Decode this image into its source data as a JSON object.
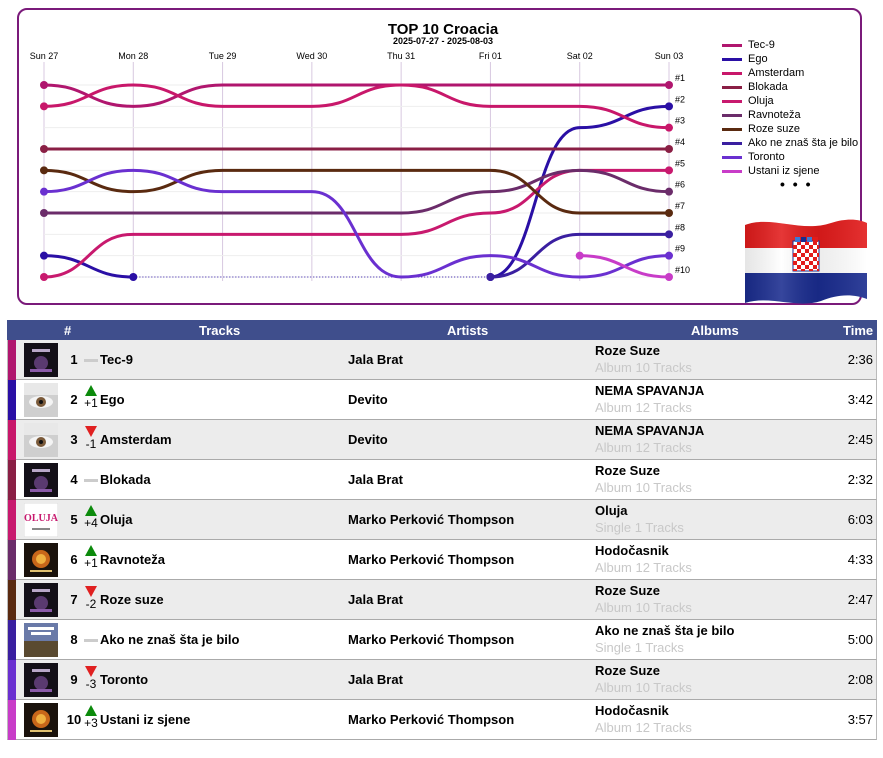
{
  "chart": {
    "title": "TOP 10 Croacia",
    "subtitle": "2025-07-27 - 2025-08-03",
    "days": [
      "Sun 27",
      "Mon 28",
      "Tue 29",
      "Wed 30",
      "Thu 31",
      "Fri 01",
      "Sat 02",
      "Sun 03"
    ],
    "rank_labels": [
      "#1",
      "#2",
      "#3",
      "#4",
      "#5",
      "#6",
      "#7",
      "#8",
      "#9",
      "#10"
    ],
    "more": "• • •"
  },
  "chart_data": {
    "type": "line",
    "title": "TOP 10 Croacia",
    "subtitle": "2025-07-27 - 2025-08-03",
    "x": [
      "Sun 27",
      "Mon 28",
      "Tue 29",
      "Wed 30",
      "Thu 31",
      "Fri 01",
      "Sat 02",
      "Sun 03"
    ],
    "y_axis": "rank (1 at top, 10 at bottom)",
    "ylim": [
      10,
      1
    ],
    "legend_position": "right",
    "series": [
      {
        "name": "Tec-9",
        "color": "#b0166e",
        "values": [
          1,
          2,
          1,
          1,
          1,
          1,
          1,
          1
        ]
      },
      {
        "name": "Ego",
        "color": "#2a0fa5",
        "values": [
          9,
          10,
          null,
          null,
          null,
          10,
          3,
          2
        ]
      },
      {
        "name": "Amsterdam",
        "color": "#c8176a",
        "values": [
          2,
          1,
          2,
          2,
          1,
          2,
          2,
          3
        ]
      },
      {
        "name": "Blokada",
        "color": "#8a1f45",
        "values": [
          4,
          4,
          4,
          4,
          4,
          4,
          4,
          4
        ]
      },
      {
        "name": "Oluja",
        "color": "#c8196e",
        "values": [
          10,
          8,
          8,
          8,
          8,
          7,
          5,
          5
        ]
      },
      {
        "name": "Ravnoteža",
        "color": "#6b2c6a",
        "values": [
          7,
          7,
          7,
          7,
          7,
          6,
          5,
          6
        ]
      },
      {
        "name": "Roze suze",
        "color": "#5a2a10",
        "values": [
          5,
          6,
          5,
          5,
          5,
          5,
          7,
          7
        ]
      },
      {
        "name": "Ako ne znaš šta je bilo",
        "color": "#3a1fa0",
        "values": [
          null,
          null,
          null,
          null,
          null,
          10,
          8,
          8
        ]
      },
      {
        "name": "Toronto",
        "color": "#6a30d0",
        "values": [
          6,
          5,
          6,
          6,
          10,
          9,
          10,
          9
        ]
      },
      {
        "name": "Ustani iz sjene",
        "color": "#c83cc8",
        "values": [
          null,
          null,
          null,
          null,
          null,
          null,
          9,
          10
        ]
      }
    ]
  },
  "table": {
    "headers": {
      "rank": "#",
      "tracks": "Tracks",
      "artists": "Artists",
      "albums": "Albums",
      "time": "Time"
    },
    "rows": [
      {
        "rank": "1",
        "move": "",
        "dir": "same",
        "track": "Tec-9",
        "artist": "Jala Brat",
        "album": "Roze Suze",
        "album_sub": "Album 10 Tracks",
        "time": "2:36",
        "color": "#b0166e",
        "cover": "dark"
      },
      {
        "rank": "2",
        "move": "+1",
        "dir": "up",
        "track": "Ego",
        "artist": "Devito",
        "album": "NEMA SPAVANJA",
        "album_sub": "Album 12 Tracks",
        "time": "3:42",
        "color": "#2a0fa5",
        "cover": "eye"
      },
      {
        "rank": "3",
        "move": "-1",
        "dir": "down",
        "track": "Amsterdam",
        "artist": "Devito",
        "album": "NEMA SPAVANJA",
        "album_sub": "Album 12 Tracks",
        "time": "2:45",
        "color": "#c8176a",
        "cover": "eye"
      },
      {
        "rank": "4",
        "move": "",
        "dir": "same",
        "track": "Blokada",
        "artist": "Jala Brat",
        "album": "Roze Suze",
        "album_sub": "Album 10 Tracks",
        "time": "2:32",
        "color": "#8a1f45",
        "cover": "dark"
      },
      {
        "rank": "5",
        "move": "+4",
        "dir": "up",
        "track": "Oluja",
        "artist": "Marko Perković Thompson",
        "album": "Oluja",
        "album_sub": "Single 1 Tracks",
        "time": "6:03",
        "color": "#c8196e",
        "cover": "white"
      },
      {
        "rank": "6",
        "move": "+1",
        "dir": "up",
        "track": "Ravnoteža",
        "artist": "Marko Perković Thompson",
        "album": "Hodočasnik",
        "album_sub": "Album 12 Tracks",
        "time": "4:33",
        "color": "#6b2c6a",
        "cover": "fire"
      },
      {
        "rank": "7",
        "move": "-2",
        "dir": "down",
        "track": "Roze suze",
        "artist": "Jala Brat",
        "album": "Roze Suze",
        "album_sub": "Album 10 Tracks",
        "time": "2:47",
        "color": "#5a2a10",
        "cover": "dark"
      },
      {
        "rank": "8",
        "move": "",
        "dir": "same",
        "track": "Ako ne znaš šta je bilo",
        "artist": "Marko Perković Thompson",
        "album": "Ako ne znaš šta je bilo",
        "album_sub": "Single 1 Tracks",
        "time": "5:00",
        "color": "#3a1fa0",
        "cover": "poster"
      },
      {
        "rank": "9",
        "move": "-3",
        "dir": "down",
        "track": "Toronto",
        "artist": "Jala Brat",
        "album": "Roze Suze",
        "album_sub": "Album 10 Tracks",
        "time": "2:08",
        "color": "#6a30d0",
        "cover": "dark"
      },
      {
        "rank": "10",
        "move": "+3",
        "dir": "up",
        "track": "Ustani iz sjene",
        "artist": "Marko Perković Thompson",
        "album": "Hodočasnik",
        "album_sub": "Album 12 Tracks",
        "time": "3:57",
        "color": "#c83cc8",
        "cover": "fire"
      }
    ]
  }
}
